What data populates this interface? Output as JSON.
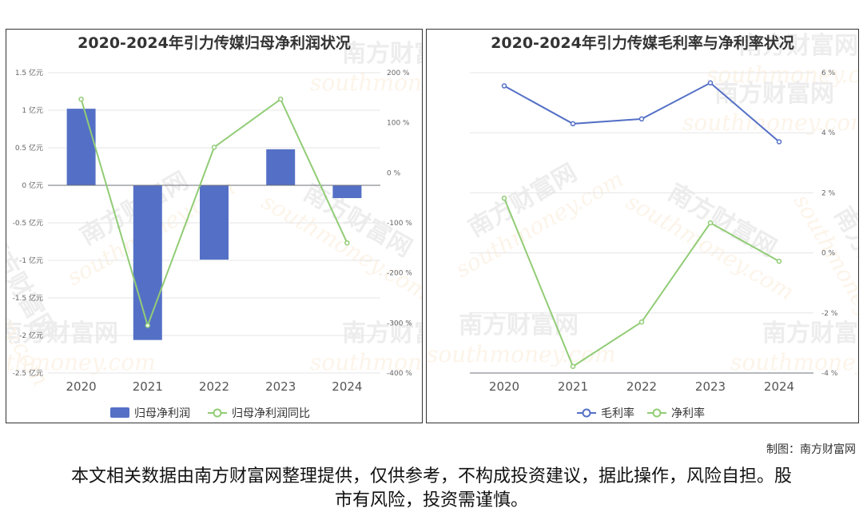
{
  "charts": {
    "left": {
      "title": "2020-2024年引力传媒归母净利润状况"
    },
    "right": {
      "title": "2020-2024年引力传媒毛利率与净利率状况"
    }
  },
  "chart_data": [
    {
      "type": "bar",
      "title": "2020-2024年引力传媒归母净利润状况",
      "categories": [
        "2020",
        "2021",
        "2022",
        "2023",
        "2024"
      ],
      "y_left": {
        "unit": "亿元",
        "range": [
          -2.5,
          1.5
        ],
        "ticks": [
          1.5,
          1,
          0.5,
          0,
          -0.5,
          -1,
          -1.5,
          -2,
          -2.5
        ],
        "tick_labels": [
          "1.5 亿元",
          "1 亿元",
          "0.5 亿元",
          "0 亿元",
          "-0.5 亿元",
          "-1 亿元",
          "-1.5 亿元",
          "-2 亿元",
          "-2.5 亿元"
        ]
      },
      "y_right": {
        "unit": "%",
        "range": [
          -400,
          200
        ],
        "ticks": [
          200,
          100,
          0,
          -100,
          -200,
          -300,
          -400
        ],
        "tick_labels": [
          "200 %",
          "100 %",
          "0 %",
          "-100 %",
          "-200 %",
          "-300 %",
          "-400 %"
        ]
      },
      "series": [
        {
          "name": "归母净利润",
          "type": "bar",
          "axis": "left",
          "color": "#5470c6",
          "values": [
            1.02,
            -2.06,
            -0.99,
            0.48,
            -0.17
          ]
        },
        {
          "name": "归母净利润同比",
          "type": "line",
          "axis": "right",
          "color": "#91cc75",
          "values": [
            147,
            -305,
            51,
            147,
            -140
          ]
        }
      ],
      "grid": true,
      "legend": "bottom-center"
    },
    {
      "type": "line",
      "title": "2020-2024年引力传媒毛利率与净利率状况",
      "categories": [
        "2020",
        "2021",
        "2022",
        "2023",
        "2024"
      ],
      "y": {
        "unit": "%",
        "range": [
          -4,
          6
        ],
        "ticks": [
          6,
          4,
          2,
          0,
          -2,
          -4
        ],
        "tick_labels": [
          "6 %",
          "4 %",
          "2 %",
          "0 %",
          "-2 %",
          "-4 %"
        ]
      },
      "series": [
        {
          "name": "毛利率",
          "color": "#5470c6",
          "values": [
            5.56,
            4.3,
            4.46,
            5.66,
            3.7
          ]
        },
        {
          "name": "净利率",
          "color": "#91cc75",
          "values": [
            1.82,
            -3.78,
            -2.3,
            1.0,
            -0.28
          ]
        }
      ],
      "grid": true,
      "legend": "bottom-center"
    }
  ],
  "watermark": {
    "brand": "南方财富网",
    "url": "southmoney.com"
  },
  "footer": {
    "credit": "制图：南方财富网",
    "disclaimer": "本文相关数据由南方财富网整理提供，仅供参考，不构成投资建议，据此操作，风险自担。股市有风险，投资需谨慎。"
  }
}
